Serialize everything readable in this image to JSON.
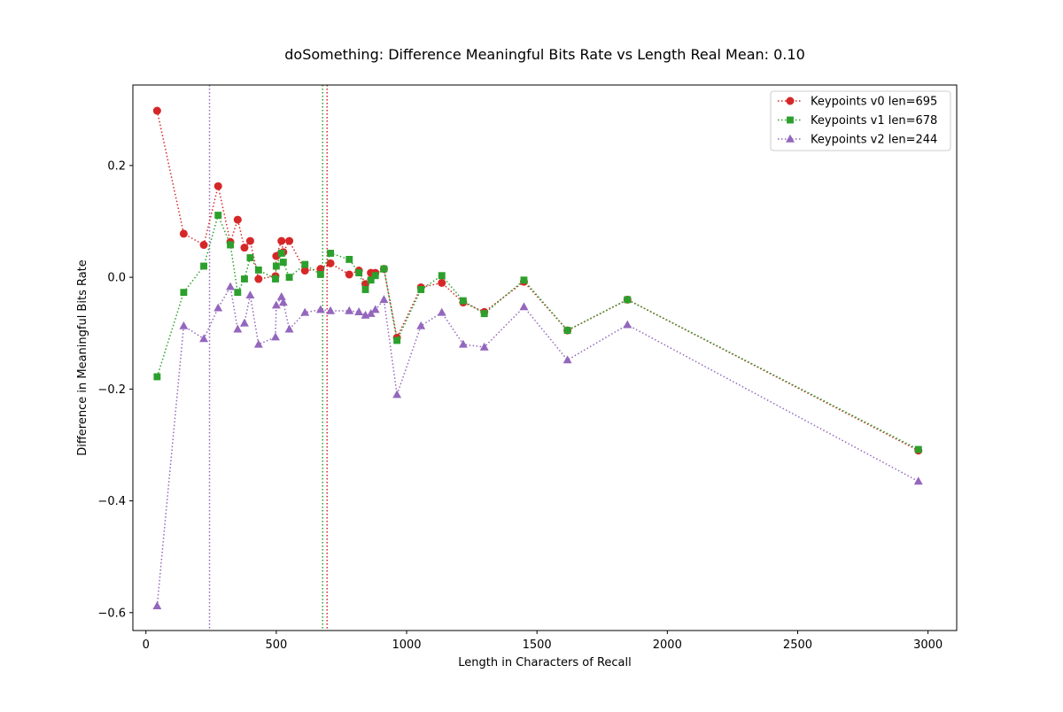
{
  "chart_data": {
    "type": "line",
    "title": "doSomething: Difference Meaningful Bits Rate vs Length Real Mean: 0.10",
    "xlabel": "Length in Characters of Recall",
    "ylabel": "Difference in Meaningful Bits Rate",
    "xlim": [
      -50,
      3110
    ],
    "ylim": [
      -0.632,
      0.344
    ],
    "x_ticks": [
      0,
      500,
      1000,
      1500,
      2000,
      2500,
      3000
    ],
    "x_tick_labels": [
      "0",
      "500",
      "1000",
      "1500",
      "2000",
      "2500",
      "3000"
    ],
    "y_ticks": [
      -0.6,
      -0.4,
      -0.2,
      0.0,
      0.2
    ],
    "y_tick_labels": [
      "−0.6",
      "−0.4",
      "−0.2",
      "0.0",
      "0.2"
    ],
    "grid": false,
    "legend_position": "top-right",
    "series": [
      {
        "name": "Keypoints v0 len=695",
        "color": "#d62728",
        "marker": "circle",
        "line_style": "dotted",
        "vline_x": 695,
        "x": [
          43,
          145,
          222,
          277,
          324,
          352,
          378,
          400,
          432,
          497,
          500,
          520,
          527,
          550,
          610,
          670,
          708,
          780,
          817,
          842,
          863,
          880,
          913,
          963,
          1055,
          1135,
          1217,
          1298,
          1450,
          1617,
          1847,
          2963
        ],
        "y": [
          0.298,
          0.078,
          0.058,
          0.163,
          0.063,
          0.103,
          0.053,
          0.065,
          -0.003,
          0.002,
          0.038,
          0.065,
          0.045,
          0.065,
          0.012,
          0.015,
          0.025,
          0.005,
          0.012,
          -0.012,
          0.008,
          0.008,
          0.015,
          -0.108,
          -0.018,
          -0.01,
          -0.045,
          -0.062,
          -0.008,
          -0.095,
          -0.04,
          -0.31
        ]
      },
      {
        "name": "Keypoints v1 len=678",
        "color": "#2ca02c",
        "marker": "square",
        "line_style": "dotted",
        "vline_x": 678,
        "x": [
          43,
          145,
          222,
          277,
          324,
          352,
          378,
          400,
          432,
          497,
          500,
          520,
          527,
          550,
          610,
          670,
          708,
          780,
          817,
          842,
          863,
          880,
          913,
          963,
          1055,
          1135,
          1217,
          1298,
          1450,
          1617,
          1847,
          2963
        ],
        "y": [
          -0.178,
          -0.027,
          0.02,
          0.111,
          0.058,
          -0.027,
          -0.003,
          0.035,
          0.013,
          -0.003,
          0.02,
          0.043,
          0.027,
          0.0,
          0.023,
          0.005,
          0.043,
          0.032,
          0.008,
          -0.022,
          -0.005,
          0.003,
          0.015,
          -0.113,
          -0.022,
          0.003,
          -0.042,
          -0.065,
          -0.005,
          -0.095,
          -0.04,
          -0.308
        ]
      },
      {
        "name": "Keypoints v2 len=244",
        "color": "#9467bd",
        "marker": "triangle",
        "line_style": "dotted",
        "vline_x": 244,
        "x": [
          43,
          145,
          222,
          277,
          324,
          352,
          378,
          400,
          432,
          497,
          500,
          520,
          527,
          550,
          610,
          670,
          708,
          780,
          817,
          842,
          863,
          880,
          913,
          963,
          1055,
          1135,
          1217,
          1298,
          1450,
          1617,
          1847,
          2963
        ],
        "y": [
          -0.588,
          -0.087,
          -0.11,
          -0.055,
          -0.017,
          -0.093,
          -0.082,
          -0.032,
          -0.12,
          -0.107,
          -0.05,
          -0.035,
          -0.045,
          -0.093,
          -0.063,
          -0.058,
          -0.06,
          -0.06,
          -0.062,
          -0.068,
          -0.065,
          -0.058,
          -0.04,
          -0.21,
          -0.087,
          -0.063,
          -0.12,
          -0.125,
          -0.053,
          -0.148,
          -0.085,
          -0.365
        ]
      }
    ]
  }
}
